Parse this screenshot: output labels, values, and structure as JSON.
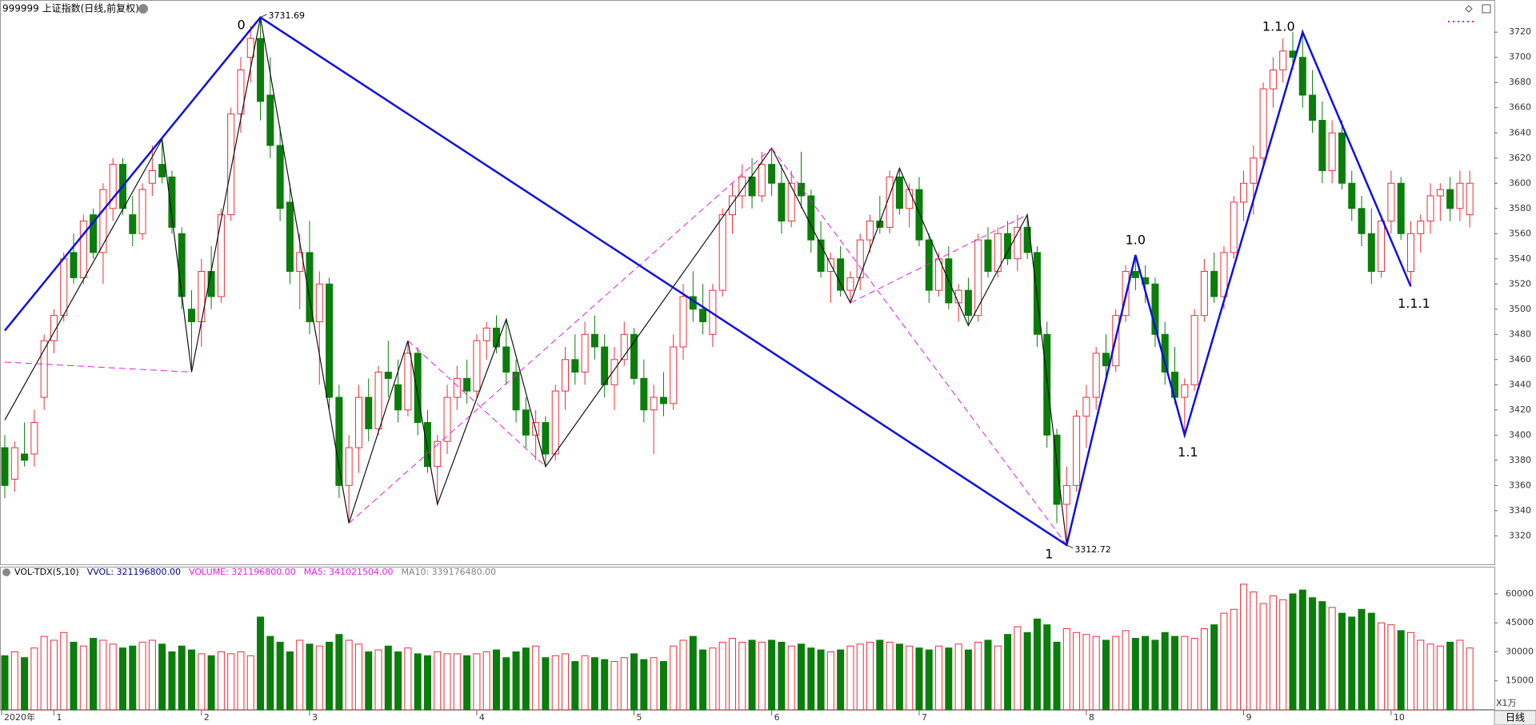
{
  "chart_data": {
    "type": "candlestick",
    "title": "999999 上证指数(日线,前复权)",
    "ylim": [
      3298,
      3743
    ],
    "yticks": [
      3320,
      3340,
      3360,
      3380,
      3400,
      3420,
      3440,
      3460,
      3480,
      3500,
      3520,
      3540,
      3560,
      3580,
      3600,
      3620,
      3640,
      3660,
      3680,
      3700,
      3720
    ],
    "up_color": "#e8303a",
    "down_color": "#0a7d0a",
    "candles": [
      [
        3390,
        3400,
        3350,
        3360
      ],
      [
        3365,
        3395,
        3355,
        3390
      ],
      [
        3385,
        3410,
        3375,
        3380
      ],
      [
        3385,
        3420,
        3375,
        3410
      ],
      [
        3430,
        3480,
        3420,
        3475
      ],
      [
        3475,
        3500,
        3465,
        3495
      ],
      [
        3495,
        3545,
        3490,
        3540
      ],
      [
        3545,
        3560,
        3520,
        3525
      ],
      [
        3525,
        3575,
        3520,
        3570
      ],
      [
        3575,
        3580,
        3540,
        3545
      ],
      [
        3545,
        3600,
        3520,
        3595
      ],
      [
        3580,
        3620,
        3570,
        3615
      ],
      [
        3615,
        3620,
        3575,
        3580
      ],
      [
        3575,
        3590,
        3550,
        3560
      ],
      [
        3560,
        3600,
        3555,
        3595
      ],
      [
        3600,
        3630,
        3590,
        3610
      ],
      [
        3615,
        3635,
        3600,
        3605
      ],
      [
        3605,
        3610,
        3560,
        3565
      ],
      [
        3560,
        3565,
        3500,
        3510
      ],
      [
        3500,
        3515,
        3450,
        3490
      ],
      [
        3490,
        3540,
        3470,
        3530
      ],
      [
        3530,
        3550,
        3500,
        3510
      ],
      [
        3510,
        3580,
        3505,
        3575
      ],
      [
        3575,
        3660,
        3570,
        3655
      ],
      [
        3655,
        3700,
        3640,
        3690
      ],
      [
        3700,
        3725,
        3680,
        3715
      ],
      [
        3715,
        3731.69,
        3650,
        3665
      ],
      [
        3670,
        3700,
        3620,
        3630
      ],
      [
        3630,
        3645,
        3570,
        3580
      ],
      [
        3585,
        3600,
        3520,
        3530
      ],
      [
        3530,
        3560,
        3500,
        3545
      ],
      [
        3545,
        3570,
        3480,
        3490
      ],
      [
        3490,
        3530,
        3440,
        3520
      ],
      [
        3520,
        3525,
        3420,
        3430
      ],
      [
        3430,
        3440,
        3350,
        3360
      ],
      [
        3360,
        3400,
        3330,
        3390
      ],
      [
        3390,
        3440,
        3370,
        3430
      ],
      [
        3430,
        3445,
        3395,
        3405
      ],
      [
        3405,
        3455,
        3400,
        3450
      ],
      [
        3450,
        3475,
        3430,
        3445
      ],
      [
        3440,
        3460,
        3410,
        3420
      ],
      [
        3420,
        3475,
        3415,
        3465
      ],
      [
        3465,
        3470,
        3400,
        3410
      ],
      [
        3410,
        3420,
        3370,
        3375
      ],
      [
        3375,
        3400,
        3345,
        3395
      ],
      [
        3395,
        3440,
        3385,
        3430
      ],
      [
        3430,
        3455,
        3420,
        3445
      ],
      [
        3445,
        3460,
        3425,
        3435
      ],
      [
        3435,
        3480,
        3430,
        3475
      ],
      [
        3475,
        3490,
        3460,
        3485
      ],
      [
        3485,
        3495,
        3465,
        3470
      ],
      [
        3470,
        3492,
        3440,
        3450
      ],
      [
        3450,
        3460,
        3410,
        3420
      ],
      [
        3420,
        3430,
        3390,
        3400
      ],
      [
        3400,
        3420,
        3380,
        3410
      ],
      [
        3410,
        3415,
        3375,
        3385
      ],
      [
        3385,
        3440,
        3380,
        3435
      ],
      [
        3435,
        3470,
        3420,
        3460
      ],
      [
        3460,
        3480,
        3440,
        3450
      ],
      [
        3450,
        3490,
        3440,
        3480
      ],
      [
        3480,
        3495,
        3460,
        3470
      ],
      [
        3470,
        3480,
        3430,
        3440
      ],
      [
        3440,
        3470,
        3420,
        3460
      ],
      [
        3460,
        3490,
        3455,
        3480
      ],
      [
        3480,
        3485,
        3440,
        3445
      ],
      [
        3445,
        3460,
        3410,
        3420
      ],
      [
        3420,
        3440,
        3385,
        3430
      ],
      [
        3430,
        3450,
        3415,
        3425
      ],
      [
        3425,
        3480,
        3420,
        3470
      ],
      [
        3470,
        3520,
        3460,
        3510
      ],
      [
        3510,
        3530,
        3490,
        3500
      ],
      [
        3500,
        3520,
        3480,
        3490
      ],
      [
        3480,
        3520,
        3470,
        3515
      ],
      [
        3515,
        3580,
        3510,
        3575
      ],
      [
        3575,
        3600,
        3560,
        3590
      ],
      [
        3590,
        3615,
        3580,
        3605
      ],
      [
        3605,
        3620,
        3580,
        3590
      ],
      [
        3590,
        3625,
        3585,
        3615
      ],
      [
        3615,
        3628,
        3590,
        3600
      ],
      [
        3600,
        3615,
        3560,
        3570
      ],
      [
        3570,
        3610,
        3565,
        3600
      ],
      [
        3600,
        3625,
        3580,
        3590
      ],
      [
        3590,
        3595,
        3545,
        3555
      ],
      [
        3555,
        3570,
        3525,
        3530
      ],
      [
        3530,
        3545,
        3505,
        3540
      ],
      [
        3540,
        3550,
        3510,
        3515
      ],
      [
        3515,
        3530,
        3505,
        3525
      ],
      [
        3525,
        3560,
        3515,
        3555
      ],
      [
        3555,
        3575,
        3545,
        3570
      ],
      [
        3570,
        3590,
        3560,
        3565
      ],
      [
        3565,
        3610,
        3560,
        3605
      ],
      [
        3605,
        3612,
        3575,
        3580
      ],
      [
        3580,
        3600,
        3565,
        3595
      ],
      [
        3595,
        3605,
        3550,
        3555
      ],
      [
        3555,
        3560,
        3505,
        3515
      ],
      [
        3515,
        3545,
        3510,
        3540
      ],
      [
        3540,
        3550,
        3500,
        3505
      ],
      [
        3505,
        3520,
        3490,
        3515
      ],
      [
        3515,
        3525,
        3487,
        3495
      ],
      [
        3495,
        3560,
        3490,
        3555
      ],
      [
        3555,
        3565,
        3525,
        3530
      ],
      [
        3530,
        3565,
        3525,
        3560
      ],
      [
        3560,
        3570,
        3535,
        3540
      ],
      [
        3540,
        3575,
        3530,
        3565
      ],
      [
        3565,
        3575,
        3540,
        3545
      ],
      [
        3545,
        3550,
        3470,
        3480
      ],
      [
        3480,
        3490,
        3390,
        3400
      ],
      [
        3400,
        3405,
        3330,
        3345
      ],
      [
        3345,
        3375,
        3312.72,
        3360
      ],
      [
        3360,
        3420,
        3355,
        3415
      ],
      [
        3415,
        3440,
        3390,
        3430
      ],
      [
        3430,
        3470,
        3420,
        3465
      ],
      [
        3465,
        3480,
        3445,
        3455
      ],
      [
        3455,
        3500,
        3450,
        3495
      ],
      [
        3495,
        3535,
        3490,
        3530
      ],
      [
        3530,
        3543,
        3515,
        3525
      ],
      [
        3525,
        3535,
        3505,
        3520
      ],
      [
        3520,
        3525,
        3470,
        3480
      ],
      [
        3480,
        3490,
        3440,
        3450
      ],
      [
        3450,
        3470,
        3425,
        3430
      ],
      [
        3430,
        3445,
        3400,
        3440
      ],
      [
        3440,
        3500,
        3435,
        3495
      ],
      [
        3495,
        3540,
        3490,
        3530
      ],
      [
        3530,
        3545,
        3505,
        3510
      ],
      [
        3510,
        3550,
        3500,
        3545
      ],
      [
        3545,
        3590,
        3540,
        3585
      ],
      [
        3585,
        3610,
        3570,
        3600
      ],
      [
        3600,
        3630,
        3575,
        3620
      ],
      [
        3620,
        3680,
        3615,
        3675
      ],
      [
        3675,
        3700,
        3660,
        3690
      ],
      [
        3690,
        3715,
        3680,
        3705
      ],
      [
        3705,
        3720,
        3690,
        3700
      ],
      [
        3700,
        3722,
        3660,
        3670
      ],
      [
        3670,
        3690,
        3640,
        3650
      ],
      [
        3650,
        3665,
        3600,
        3610
      ],
      [
        3610,
        3650,
        3600,
        3640
      ],
      [
        3640,
        3650,
        3595,
        3600
      ],
      [
        3600,
        3610,
        3570,
        3580
      ],
      [
        3580,
        3590,
        3550,
        3560
      ],
      [
        3560,
        3580,
        3520,
        3530
      ],
      [
        3530,
        3575,
        3525,
        3570
      ],
      [
        3570,
        3610,
        3560,
        3600
      ],
      [
        3600,
        3605,
        3555,
        3560
      ],
      [
        3530,
        3570,
        3518,
        3560
      ],
      [
        3560,
        3575,
        3545,
        3570
      ],
      [
        3570,
        3600,
        3560,
        3590
      ],
      [
        3590,
        3600,
        3570,
        3595
      ],
      [
        3595,
        3605,
        3570,
        3580
      ],
      [
        3580,
        3610,
        3570,
        3600
      ],
      [
        3575,
        3610,
        3565,
        3600
      ]
    ],
    "xticks": [
      {
        "value": 0,
        "label": "2020年"
      },
      {
        "value": 5,
        "label": "1"
      },
      {
        "value": 20,
        "label": "2"
      },
      {
        "value": 31,
        "label": "3"
      },
      {
        "value": 48,
        "label": "4"
      },
      {
        "value": 64,
        "label": "5"
      },
      {
        "value": 78,
        "label": "6"
      },
      {
        "value": 93,
        "label": "7"
      },
      {
        "value": 110,
        "label": "8"
      },
      {
        "value": 126,
        "label": "9"
      },
      {
        "value": 141,
        "label": "10"
      }
    ],
    "blue_line": [
      [
        0,
        3483
      ],
      [
        26,
        3731.69
      ],
      [
        108,
        3312.72
      ],
      [
        115,
        3543
      ],
      [
        120,
        3400
      ],
      [
        132,
        3720
      ],
      [
        143,
        3518
      ]
    ],
    "black_line": [
      [
        0,
        3412
      ],
      [
        16,
        3635
      ],
      [
        19,
        3450
      ],
      [
        26,
        3731.69
      ],
      [
        35,
        3330
      ],
      [
        41,
        3475
      ],
      [
        44,
        3345
      ],
      [
        51,
        3492
      ],
      [
        55,
        3375
      ],
      [
        78,
        3628
      ],
      [
        86,
        3505
      ],
      [
        91,
        3612
      ],
      [
        98,
        3487
      ],
      [
        104,
        3575
      ],
      [
        108,
        3312.72
      ]
    ],
    "dashed_lines": [
      [
        [
          0,
          3458
        ],
        [
          19,
          3450
        ]
      ],
      [
        [
          35,
          3330
        ],
        [
          78,
          3628
        ]
      ],
      [
        [
          41,
          3475
        ],
        [
          55,
          3375
        ]
      ],
      [
        [
          78,
          3628
        ],
        [
          108,
          3312.72
        ]
      ],
      [
        [
          86,
          3505
        ],
        [
          104,
          3575
        ]
      ]
    ],
    "wave_labels": [
      "0",
      "1",
      "1.0",
      "1.1",
      "1.1.0",
      "1.1.1"
    ],
    "volume": {
      "header": [
        {
          "text": "VOL-TDX(5,10)",
          "color": "#000000"
        },
        {
          "text": "VVOL: 321196800.00",
          "color": "#000080"
        },
        {
          "text": "VOLUME: 321196800.00",
          "color": "#e020e0"
        },
        {
          "text": "MA5: 341021504.00",
          "color": "#e020e0"
        },
        {
          "text": "MA10: 339176480.00",
          "color": "#808080"
        }
      ],
      "ylim": [
        0,
        72800
      ],
      "yticks": [
        15000,
        30000,
        45000,
        60000
      ],
      "unit": "X1万",
      "values": [
        28000,
        30000,
        27000,
        32000,
        38000,
        36000,
        40000,
        35000,
        33000,
        37000,
        36000,
        34000,
        32000,
        33000,
        35000,
        36000,
        34000,
        30000,
        33000,
        31000,
        29000,
        28000,
        30000,
        29000,
        30000,
        28000,
        48000,
        38000,
        35000,
        30000,
        36000,
        34000,
        33000,
        35000,
        39000,
        36000,
        34000,
        30000,
        31000,
        33000,
        30000,
        32000,
        29000,
        28000,
        30000,
        29000,
        29000,
        28000,
        29000,
        30000,
        31000,
        27000,
        30000,
        32000,
        33000,
        27000,
        28000,
        29000,
        25000,
        28000,
        27000,
        26000,
        25000,
        27000,
        29000,
        26000,
        27000,
        25000,
        33000,
        36000,
        38000,
        31000,
        32000,
        35000,
        37000,
        35000,
        36000,
        35000,
        36000,
        35000,
        33000,
        34000,
        32000,
        31000,
        30000,
        31000,
        33000,
        34000,
        35000,
        36000,
        35000,
        34000,
        33000,
        32000,
        31000,
        33000,
        32000,
        34000,
        31000,
        35000,
        36000,
        33000,
        39000,
        43000,
        40000,
        47000,
        44000,
        35000,
        42000,
        40000,
        39000,
        38000,
        36000,
        38000,
        41000,
        37000,
        38000,
        36000,
        40000,
        38000,
        38000,
        37000,
        42000,
        44000,
        50000,
        52000,
        65000,
        61000,
        55000,
        59000,
        57000,
        60000,
        62000,
        58000,
        56000,
        53000,
        50000,
        48000,
        52000,
        50000,
        45000,
        44000,
        41000,
        40000,
        36000,
        34000,
        33000,
        35000,
        36000,
        32000
      ]
    },
    "period_tab": "日线"
  }
}
